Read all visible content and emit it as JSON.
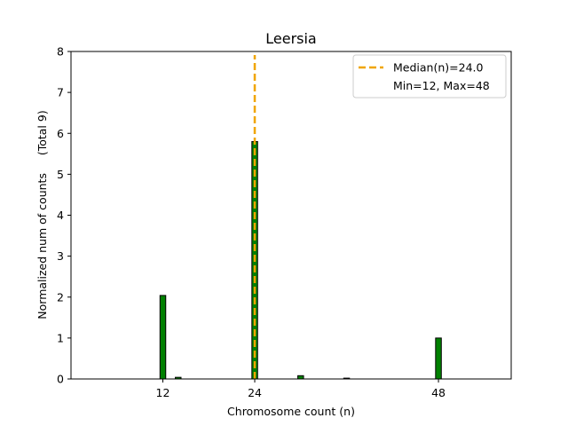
{
  "chart_data": {
    "type": "bar",
    "title": "Leersia",
    "xlabel": "Chromosome count (n)",
    "ylabel": "Normalized num of counts     (Total 9)",
    "xlim": [
      0,
      57.5
    ],
    "ylim": [
      0,
      8
    ],
    "xticks": [
      12,
      24,
      48
    ],
    "yticks": [
      0,
      1,
      2,
      3,
      4,
      5,
      6,
      7,
      8
    ],
    "bar_color": "#008000",
    "bar_edge": "#000000",
    "bars": [
      {
        "x": 12,
        "value": 2.04
      },
      {
        "x": 14,
        "value": 0.04
      },
      {
        "x": 24,
        "value": 5.8
      },
      {
        "x": 30,
        "value": 0.08
      },
      {
        "x": 36,
        "value": 0.02
      },
      {
        "x": 48,
        "value": 1.0
      }
    ],
    "median": {
      "x": 24,
      "color": "#f0a500"
    },
    "legend": {
      "placement": "top-right",
      "entries": [
        "Median(n)=24.0",
        "Min=12, Max=48"
      ]
    }
  }
}
